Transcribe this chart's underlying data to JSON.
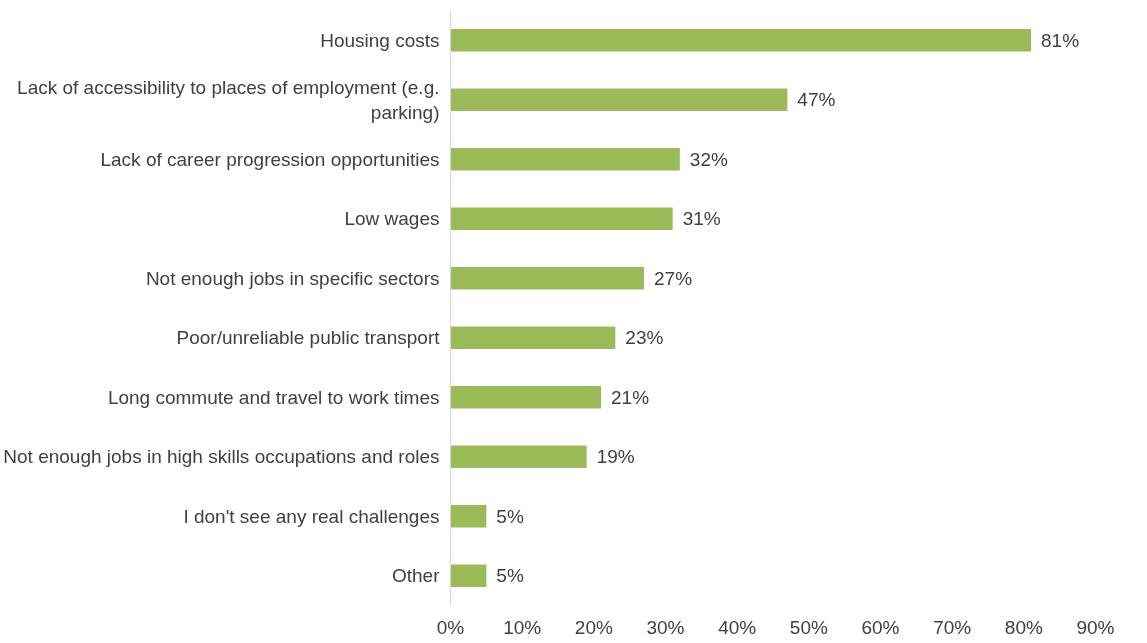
{
  "chart_data": {
    "type": "bar",
    "orientation": "horizontal",
    "categories": [
      "Housing costs",
      "Lack of accessibility to places of employment (e.g. parking)",
      "Lack of career progression opportunities ",
      "Low wages",
      "Not enough jobs in specific sectors",
      "Poor/unreliable public transport",
      "Long commute and travel to work times",
      "Not enough jobs in high skills occupations and roles",
      "I don't see any real challenges",
      "Other"
    ],
    "values": [
      81,
      47,
      32,
      31,
      27,
      23,
      21,
      19,
      5,
      5
    ],
    "value_labels": [
      "81%",
      "47%",
      "32%",
      "31%",
      "27%",
      "23%",
      "21%",
      "19%",
      "5%",
      "5%"
    ],
    "color": "#9bbb59",
    "xlim": [
      0,
      90
    ],
    "xticks": [
      {
        "value": 0,
        "label": "0%"
      },
      {
        "value": 10,
        "label": "10%"
      },
      {
        "value": 20,
        "label": "20%"
      },
      {
        "value": 30,
        "label": "30%"
      },
      {
        "value": 40,
        "label": "40%"
      },
      {
        "value": 50,
        "label": "50%"
      },
      {
        "value": 60,
        "label": "60%"
      },
      {
        "value": 70,
        "label": "70%"
      },
      {
        "value": 80,
        "label": "80%"
      },
      {
        "value": 90,
        "label": "90%"
      }
    ],
    "grid": false
  }
}
